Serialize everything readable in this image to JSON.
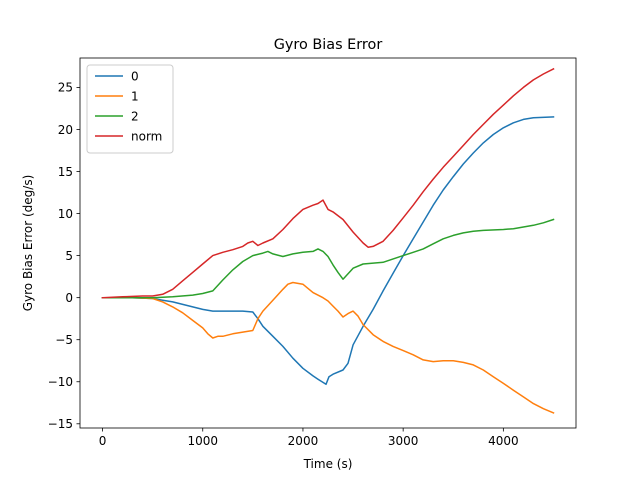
{
  "chart_data": {
    "type": "line",
    "title": "Gyro Bias Error",
    "xlabel": "Time (s)",
    "ylabel": "Gyro Bias Error (deg/s)",
    "xlim": [
      -225,
      4725
    ],
    "ylim": [
      -15.5,
      28.5
    ],
    "xticks": [
      0,
      1000,
      2000,
      3000,
      4000
    ],
    "yticks": [
      -15,
      -10,
      -5,
      0,
      5,
      10,
      15,
      20,
      25
    ],
    "grid": false,
    "legend_position": "top-left",
    "series": [
      {
        "name": "0",
        "color": "#1f77b4",
        "points": [
          [
            0,
            0
          ],
          [
            300,
            0
          ],
          [
            500,
            -0.1
          ],
          [
            600,
            -0.3
          ],
          [
            700,
            -0.5
          ],
          [
            800,
            -0.8
          ],
          [
            900,
            -1.1
          ],
          [
            1000,
            -1.4
          ],
          [
            1100,
            -1.6
          ],
          [
            1200,
            -1.6
          ],
          [
            1300,
            -1.6
          ],
          [
            1400,
            -1.6
          ],
          [
            1500,
            -1.7
          ],
          [
            1550,
            -2.5
          ],
          [
            1600,
            -3.4
          ],
          [
            1700,
            -4.6
          ],
          [
            1800,
            -5.8
          ],
          [
            1900,
            -7.2
          ],
          [
            2000,
            -8.4
          ],
          [
            2100,
            -9.3
          ],
          [
            2150,
            -9.7
          ],
          [
            2230,
            -10.3
          ],
          [
            2260,
            -9.4
          ],
          [
            2300,
            -9.1
          ],
          [
            2400,
            -8.6
          ],
          [
            2450,
            -7.8
          ],
          [
            2500,
            -5.6
          ],
          [
            2600,
            -3.4
          ],
          [
            2700,
            -1.4
          ],
          [
            2800,
            0.8
          ],
          [
            2900,
            2.9
          ],
          [
            3000,
            5.0
          ],
          [
            3100,
            7.0
          ],
          [
            3200,
            9.0
          ],
          [
            3300,
            11.0
          ],
          [
            3400,
            12.8
          ],
          [
            3500,
            14.4
          ],
          [
            3600,
            15.9
          ],
          [
            3700,
            17.2
          ],
          [
            3800,
            18.4
          ],
          [
            3900,
            19.4
          ],
          [
            4000,
            20.2
          ],
          [
            4100,
            20.8
          ],
          [
            4200,
            21.2
          ],
          [
            4300,
            21.4
          ],
          [
            4500,
            21.5
          ]
        ]
      },
      {
        "name": "1",
        "color": "#ff7f0e",
        "points": [
          [
            0,
            0
          ],
          [
            300,
            0
          ],
          [
            500,
            -0.1
          ],
          [
            600,
            -0.5
          ],
          [
            700,
            -1.1
          ],
          [
            800,
            -1.8
          ],
          [
            900,
            -2.7
          ],
          [
            1000,
            -3.6
          ],
          [
            1050,
            -4.3
          ],
          [
            1100,
            -4.8
          ],
          [
            1150,
            -4.6
          ],
          [
            1200,
            -4.6
          ],
          [
            1300,
            -4.3
          ],
          [
            1400,
            -4.1
          ],
          [
            1500,
            -3.9
          ],
          [
            1550,
            -2.5
          ],
          [
            1600,
            -1.6
          ],
          [
            1700,
            -0.3
          ],
          [
            1800,
            1.0
          ],
          [
            1850,
            1.6
          ],
          [
            1900,
            1.8
          ],
          [
            2000,
            1.6
          ],
          [
            2050,
            1.1
          ],
          [
            2100,
            0.6
          ],
          [
            2200,
            0.0
          ],
          [
            2250,
            -0.4
          ],
          [
            2300,
            -1.0
          ],
          [
            2350,
            -1.6
          ],
          [
            2400,
            -2.3
          ],
          [
            2450,
            -1.9
          ],
          [
            2500,
            -1.6
          ],
          [
            2550,
            -2.2
          ],
          [
            2600,
            -3.2
          ],
          [
            2700,
            -4.4
          ],
          [
            2800,
            -5.2
          ],
          [
            2900,
            -5.8
          ],
          [
            3000,
            -6.3
          ],
          [
            3100,
            -6.8
          ],
          [
            3200,
            -7.4
          ],
          [
            3300,
            -7.6
          ],
          [
            3400,
            -7.5
          ],
          [
            3500,
            -7.5
          ],
          [
            3600,
            -7.7
          ],
          [
            3700,
            -8.0
          ],
          [
            3800,
            -8.6
          ],
          [
            3900,
            -9.4
          ],
          [
            4000,
            -10.2
          ],
          [
            4100,
            -11.0
          ],
          [
            4200,
            -11.8
          ],
          [
            4300,
            -12.6
          ],
          [
            4400,
            -13.2
          ],
          [
            4500,
            -13.7
          ]
        ]
      },
      {
        "name": "2",
        "color": "#2ca02c",
        "points": [
          [
            0,
            0
          ],
          [
            500,
            0
          ],
          [
            700,
            0.1
          ],
          [
            900,
            0.3
          ],
          [
            1000,
            0.5
          ],
          [
            1100,
            0.8
          ],
          [
            1200,
            2.1
          ],
          [
            1300,
            3.3
          ],
          [
            1400,
            4.3
          ],
          [
            1500,
            5.0
          ],
          [
            1600,
            5.3
          ],
          [
            1650,
            5.5
          ],
          [
            1700,
            5.2
          ],
          [
            1800,
            4.9
          ],
          [
            1900,
            5.2
          ],
          [
            2000,
            5.4
          ],
          [
            2100,
            5.5
          ],
          [
            2150,
            5.8
          ],
          [
            2200,
            5.5
          ],
          [
            2250,
            4.9
          ],
          [
            2300,
            3.9
          ],
          [
            2350,
            3.0
          ],
          [
            2400,
            2.2
          ],
          [
            2500,
            3.5
          ],
          [
            2600,
            4.0
          ],
          [
            2800,
            4.2
          ],
          [
            3000,
            5.0
          ],
          [
            3100,
            5.4
          ],
          [
            3200,
            5.8
          ],
          [
            3300,
            6.4
          ],
          [
            3400,
            7.0
          ],
          [
            3500,
            7.4
          ],
          [
            3600,
            7.7
          ],
          [
            3700,
            7.9
          ],
          [
            3800,
            8.0
          ],
          [
            4000,
            8.1
          ],
          [
            4100,
            8.2
          ],
          [
            4200,
            8.4
          ],
          [
            4300,
            8.6
          ],
          [
            4400,
            8.9
          ],
          [
            4500,
            9.3
          ]
        ]
      },
      {
        "name": "norm",
        "color": "#d62728",
        "points": [
          [
            0,
            0
          ],
          [
            200,
            0.1
          ],
          [
            400,
            0.2
          ],
          [
            500,
            0.2
          ],
          [
            600,
            0.4
          ],
          [
            700,
            1.0
          ],
          [
            800,
            2.0
          ],
          [
            900,
            3.0
          ],
          [
            1000,
            4.0
          ],
          [
            1100,
            5.0
          ],
          [
            1200,
            5.4
          ],
          [
            1300,
            5.7
          ],
          [
            1400,
            6.1
          ],
          [
            1450,
            6.5
          ],
          [
            1500,
            6.7
          ],
          [
            1550,
            6.2
          ],
          [
            1600,
            6.5
          ],
          [
            1700,
            7.0
          ],
          [
            1800,
            8.1
          ],
          [
            1900,
            9.4
          ],
          [
            2000,
            10.5
          ],
          [
            2100,
            11.0
          ],
          [
            2150,
            11.2
          ],
          [
            2200,
            11.6
          ],
          [
            2250,
            10.5
          ],
          [
            2300,
            10.2
          ],
          [
            2400,
            9.3
          ],
          [
            2500,
            7.8
          ],
          [
            2600,
            6.5
          ],
          [
            2650,
            6.0
          ],
          [
            2700,
            6.1
          ],
          [
            2800,
            6.7
          ],
          [
            2900,
            8.0
          ],
          [
            3000,
            9.5
          ],
          [
            3100,
            11.0
          ],
          [
            3200,
            12.6
          ],
          [
            3300,
            14.1
          ],
          [
            3400,
            15.5
          ],
          [
            3500,
            16.8
          ],
          [
            3600,
            18.1
          ],
          [
            3700,
            19.4
          ],
          [
            3800,
            20.6
          ],
          [
            3900,
            21.8
          ],
          [
            4000,
            22.9
          ],
          [
            4100,
            24.0
          ],
          [
            4200,
            25.0
          ],
          [
            4300,
            25.9
          ],
          [
            4400,
            26.6
          ],
          [
            4500,
            27.2
          ]
        ]
      }
    ]
  }
}
